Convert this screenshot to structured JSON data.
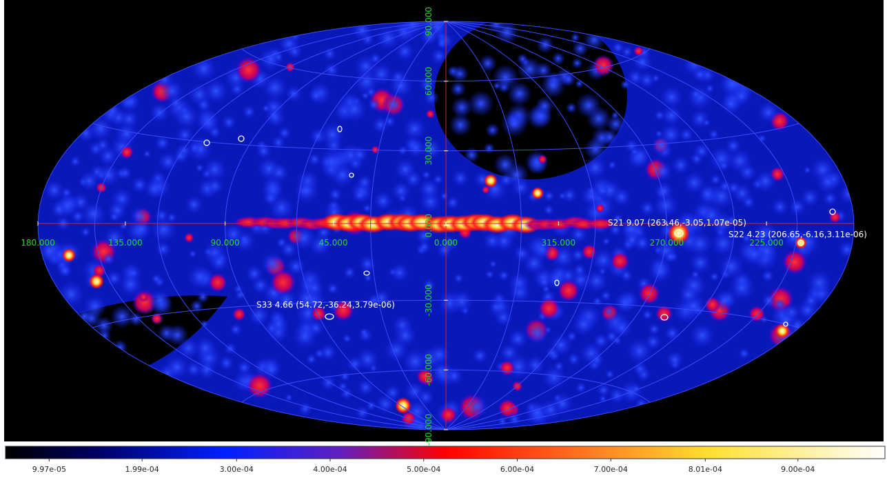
{
  "map": {
    "longitude_labels": [
      {
        "value": 180,
        "label": "180.000"
      },
      {
        "value": 135,
        "label": "135.000"
      },
      {
        "value": 90,
        "label": "90.000"
      },
      {
        "value": 45,
        "label": "45.000"
      },
      {
        "value": 0,
        "label": "0.000"
      },
      {
        "value": 315,
        "label": "315.000"
      },
      {
        "value": 270,
        "label": "270.000"
      },
      {
        "value": 225,
        "label": "225.000"
      }
    ],
    "latitude_labels": [
      {
        "value": 90,
        "label": "90.000"
      },
      {
        "value": 60,
        "label": "60.000"
      },
      {
        "value": 30,
        "label": "30.000"
      },
      {
        "value": 0,
        "label": "0.000"
      },
      {
        "value": -30,
        "label": "-30.000"
      },
      {
        "value": -60,
        "label": "-60.000"
      },
      {
        "value": -90,
        "label": "-90.000"
      }
    ],
    "sources": [
      {
        "label": "S21 9.07 (263.46,-3.05,1.07e-05)"
      },
      {
        "label": "S22 4.23 (206.65,-6.16,3.11e-06)"
      },
      {
        "label": "S33 4.66 (54.72,-36.24,3.79e-06)"
      }
    ]
  },
  "colorbar": {
    "range": [
      5.3e-05,
      0.000993
    ],
    "ticks": [
      {
        "value": 9.97e-05,
        "label": "9.97e-05"
      },
      {
        "value": 0.000199,
        "label": "1.99e-04"
      },
      {
        "value": 0.0003,
        "label": "3.00e-04"
      },
      {
        "value": 0.0004,
        "label": "4.00e-04"
      },
      {
        "value": 0.0005,
        "label": "5.00e-04"
      },
      {
        "value": 0.0006,
        "label": "6.00e-04"
      },
      {
        "value": 0.0007,
        "label": "7.00e-04"
      },
      {
        "value": 0.000801,
        "label": "8.01e-04"
      },
      {
        "value": 0.0009,
        "label": "9.00e-04"
      }
    ]
  }
}
